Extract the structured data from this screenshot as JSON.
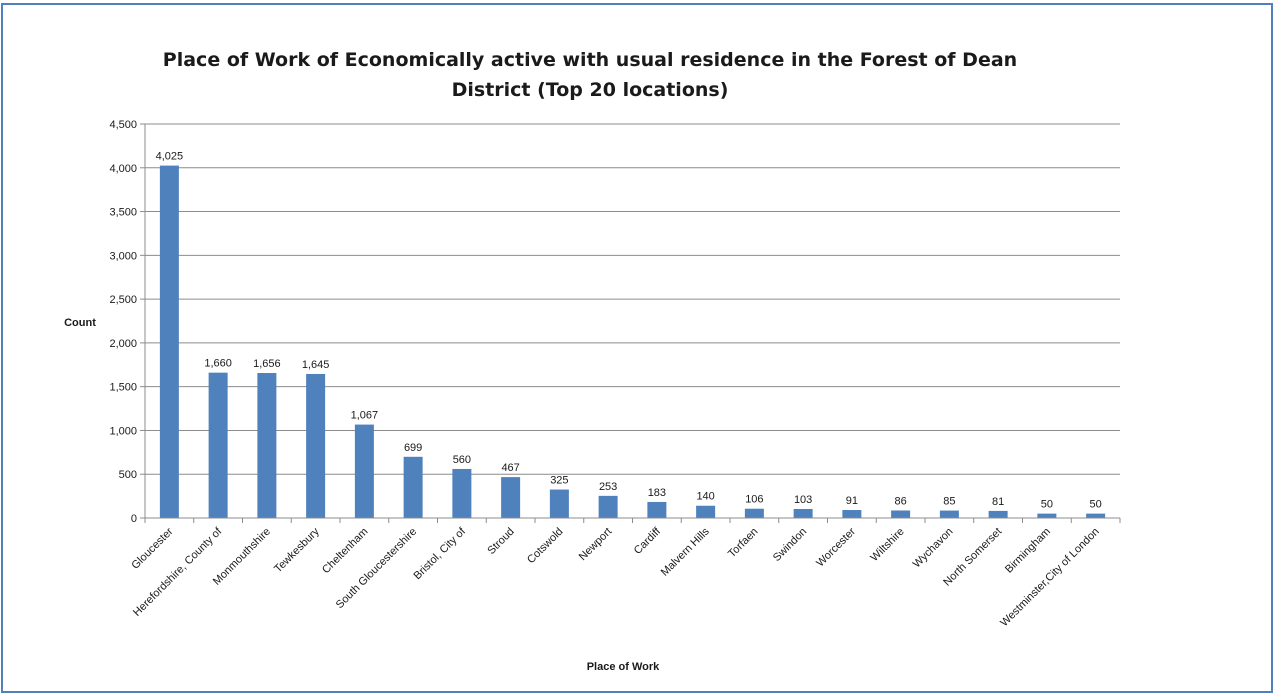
{
  "chart_data": {
    "type": "bar",
    "title": "Place of Work of Economically active with usual residence in the Forest of Dean District (Top 20 locations)",
    "title_lines": [
      "Place of Work of Economically active with usual residence in the Forest of Dean",
      "District (Top 20 locations)"
    ],
    "xlabel": "Place of Work",
    "ylabel": "Count",
    "ylim": [
      0,
      4500
    ],
    "yticks": [
      0,
      500,
      1000,
      1500,
      2000,
      2500,
      3000,
      3500,
      4000,
      4500
    ],
    "ytick_labels": [
      "0",
      "500",
      "1,000",
      "1,500",
      "2,000",
      "2,500",
      "3,000",
      "3,500",
      "4,000",
      "4,500"
    ],
    "grid": true,
    "legend": "none",
    "bar_color": "#4f81bd",
    "categories": [
      "Gloucester",
      "Herefordshire, County of",
      "Monmouthshire",
      "Tewkesbury",
      "Cheltenham",
      "South Gloucestershire",
      "Bristol, City of",
      "Stroud",
      "Cotswold",
      "Newport",
      "Cardiff",
      "Malvern Hills",
      "Torfaen",
      "Swindon",
      "Worcester",
      "Wiltshire",
      "Wychavon",
      "North Somerset",
      "Birmingham",
      "Westminster,City of London"
    ],
    "values": [
      4025,
      1660,
      1656,
      1645,
      1067,
      699,
      560,
      467,
      325,
      253,
      183,
      140,
      106,
      103,
      91,
      86,
      85,
      81,
      50,
      50
    ],
    "data_labels": [
      "4,025",
      "1,660",
      "1,656",
      "1,645",
      "1,067",
      "699",
      "560",
      "467",
      "325",
      "253",
      "183",
      "140",
      "106",
      "103",
      "91",
      "86",
      "85",
      "81",
      "50",
      "50"
    ]
  }
}
